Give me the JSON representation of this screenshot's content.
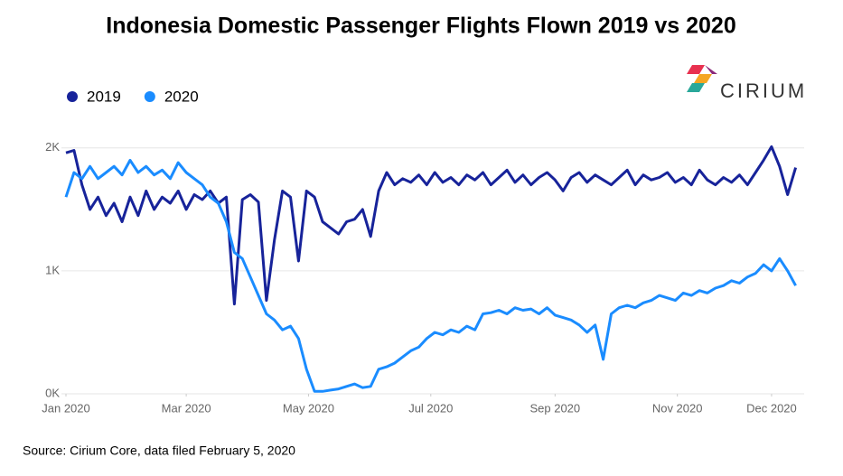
{
  "chart_data": {
    "type": "line",
    "title": "Indonesia Domestic Passenger Flights Flown 2019 vs 2020",
    "source": "Source: Cirium Core, data filed February 5, 2020",
    "brand": "CIRIUM",
    "x": [
      0,
      4,
      8,
      12,
      16,
      20,
      24,
      28,
      32,
      36,
      40,
      44,
      48,
      52,
      56,
      60,
      64,
      68,
      72,
      76,
      80,
      84,
      88,
      92,
      96,
      100,
      104,
      108,
      112,
      116,
      120,
      124,
      128,
      132,
      136,
      140,
      144,
      148,
      152,
      156,
      160,
      164,
      168,
      172,
      176,
      180,
      184,
      188,
      192,
      196,
      200,
      204,
      208,
      212,
      216,
      220,
      224,
      228,
      232,
      236,
      240,
      244,
      248,
      252,
      256,
      260,
      264,
      268,
      272,
      276,
      280,
      284,
      288,
      292,
      296,
      300,
      304,
      308,
      312,
      316,
      320,
      324,
      328,
      332,
      336,
      340,
      344,
      348,
      352,
      356,
      360,
      364
    ],
    "xlim": [
      0,
      366
    ],
    "xticks": [
      {
        "value": 0,
        "label": "Jan 2020"
      },
      {
        "value": 60,
        "label": "Mar 2020"
      },
      {
        "value": 121,
        "label": "May 2020"
      },
      {
        "value": 182,
        "label": "Jul 2020"
      },
      {
        "value": 244,
        "label": "Sep 2020"
      },
      {
        "value": 305,
        "label": "Nov 2020"
      },
      {
        "value": 352,
        "label": "Dec 2020"
      }
    ],
    "ylim": [
      0,
      2050
    ],
    "yticks": [
      {
        "value": 0,
        "label": "0K"
      },
      {
        "value": 1000,
        "label": "1K"
      },
      {
        "value": 2000,
        "label": "2K"
      }
    ],
    "grid": true,
    "series": [
      {
        "name": "2019",
        "color": "#17239a",
        "values": [
          1960,
          1980,
          1700,
          1500,
          1600,
          1450,
          1550,
          1400,
          1600,
          1450,
          1650,
          1500,
          1600,
          1550,
          1650,
          1500,
          1620,
          1580,
          1650,
          1550,
          1600,
          730,
          1580,
          1620,
          1560,
          760,
          1250,
          1650,
          1600,
          1080,
          1650,
          1600,
          1400,
          1350,
          1300,
          1400,
          1420,
          1500,
          1280,
          1650,
          1800,
          1700,
          1750,
          1720,
          1780,
          1700,
          1800,
          1720,
          1760,
          1700,
          1780,
          1740,
          1800,
          1700,
          1760,
          1820,
          1720,
          1780,
          1700,
          1760,
          1800,
          1740,
          1650,
          1760,
          1800,
          1720,
          1780,
          1740,
          1700,
          1760,
          1820,
          1700,
          1780,
          1740,
          1760,
          1800,
          1720,
          1760,
          1700,
          1820,
          1740,
          1700,
          1760,
          1720,
          1780,
          1700,
          1800,
          1900,
          2010,
          1850,
          1620,
          1840
        ]
      },
      {
        "name": "2020",
        "color": "#1a8cff",
        "values": [
          1600,
          1800,
          1750,
          1850,
          1750,
          1800,
          1850,
          1780,
          1900,
          1800,
          1850,
          1780,
          1820,
          1750,
          1880,
          1800,
          1750,
          1700,
          1600,
          1550,
          1400,
          1150,
          1100,
          950,
          800,
          650,
          600,
          520,
          550,
          450,
          200,
          20,
          20,
          30,
          40,
          60,
          80,
          50,
          60,
          200,
          220,
          250,
          300,
          350,
          380,
          450,
          500,
          480,
          520,
          500,
          550,
          520,
          650,
          660,
          680,
          650,
          700,
          680,
          690,
          650,
          700,
          640,
          620,
          600,
          560,
          500,
          560,
          280,
          650,
          700,
          720,
          700,
          740,
          760,
          800,
          780,
          760,
          820,
          800,
          840,
          820,
          860,
          880,
          920,
          900,
          950,
          980,
          1050,
          1000,
          1100,
          1000,
          880
        ]
      }
    ]
  }
}
